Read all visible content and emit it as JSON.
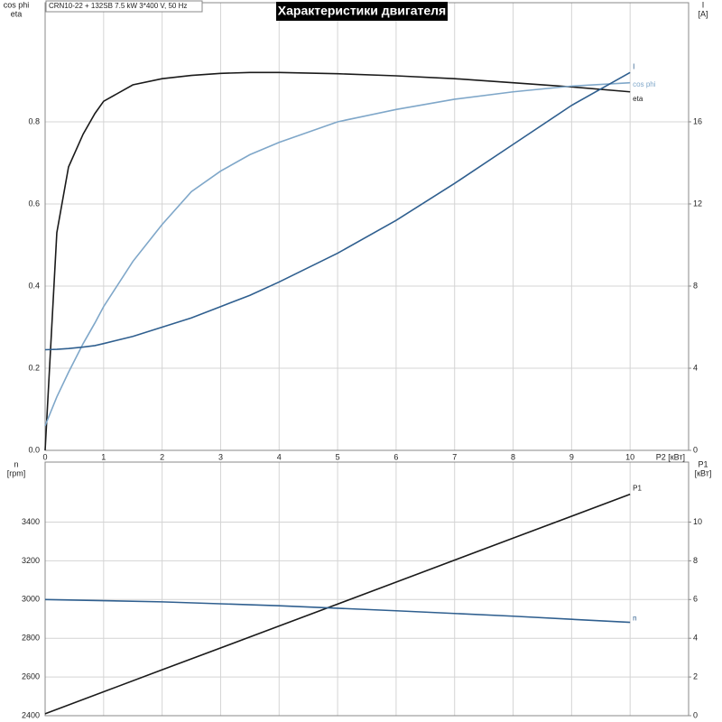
{
  "chart_data": [
    {
      "type": "line",
      "title": "Характеристики двигателя",
      "subtitle": "CRN10-22 + 132SB  7.5 kW  3*400 V, 50 Hz",
      "xlabel": "P2 [кВт]",
      "ylabel_lines": [
        "cos phi",
        "eta"
      ],
      "y2label_lines": [
        "I",
        "[A]"
      ],
      "x": [
        0,
        0.2,
        0.4,
        0.65,
        0.85,
        1,
        1.5,
        2,
        2.5,
        3,
        3.5,
        4,
        5,
        6,
        7,
        8,
        9,
        10
      ],
      "series": [
        {
          "name": "eta",
          "color": "#1a1a1a",
          "values": [
            0,
            0.53,
            0.69,
            0.77,
            0.82,
            0.85,
            0.89,
            0.905,
            0.913,
            0.918,
            0.92,
            0.92,
            0.917,
            0.912,
            0.905,
            0.895,
            0.885,
            0.873
          ]
        },
        {
          "name": "cos phi",
          "color": "#7fa7c9",
          "values": [
            0.06,
            0.13,
            0.19,
            0.26,
            0.31,
            0.35,
            0.46,
            0.55,
            0.63,
            0.68,
            0.72,
            0.75,
            0.8,
            0.83,
            0.855,
            0.873,
            0.887,
            0.895
          ]
        },
        {
          "name": "I",
          "color": "#2f5f8f",
          "axis": "y2",
          "values": [
            4.9,
            4.92,
            4.96,
            5.03,
            5.1,
            5.2,
            5.55,
            6.0,
            6.45,
            7.0,
            7.55,
            8.2,
            9.6,
            11.2,
            13.0,
            14.9,
            16.8,
            18.4
          ]
        }
      ],
      "xlim": [
        0,
        11
      ],
      "xticks": [
        0,
        1,
        2,
        3,
        4,
        5,
        6,
        7,
        8,
        9,
        10
      ],
      "ylim": [
        0,
        1.09
      ],
      "yticks": [
        {
          "value": 0,
          "label": "0.0"
        },
        0.2,
        0.4,
        0.6,
        0.8
      ],
      "y2lim": [
        0,
        21.8
      ],
      "y2ticks": [
        0,
        4,
        8,
        12,
        16
      ],
      "grid": true,
      "show_xtick_labels": true
    },
    {
      "type": "line",
      "ylabel_lines": [
        "n",
        "[rpm]"
      ],
      "y2label_lines": [
        "P1",
        "[кВт]"
      ],
      "x": [
        0,
        2,
        4,
        6,
        8,
        10
      ],
      "series": [
        {
          "name": "P1",
          "color": "#1a1a1a",
          "axis": "y2",
          "values": [
            0.1,
            2.37,
            4.63,
            6.9,
            9.17,
            11.44
          ]
        },
        {
          "name": "n",
          "color": "#2f5f8f",
          "values": [
            3000,
            2988,
            2968,
            2942,
            2914,
            2882
          ]
        }
      ],
      "xlim": [
        0,
        11
      ],
      "xticks": [
        0,
        1,
        2,
        3,
        4,
        5,
        6,
        7,
        8,
        9,
        10
      ],
      "ylim": [
        2400,
        3710
      ],
      "yticks": [
        2400,
        2600,
        2800,
        3000,
        3200,
        3400
      ],
      "y2lim": [
        0,
        13.1
      ],
      "y2ticks": [
        0,
        2,
        4,
        6,
        8,
        10
      ],
      "grid": true,
      "show_xtick_labels": false
    }
  ]
}
